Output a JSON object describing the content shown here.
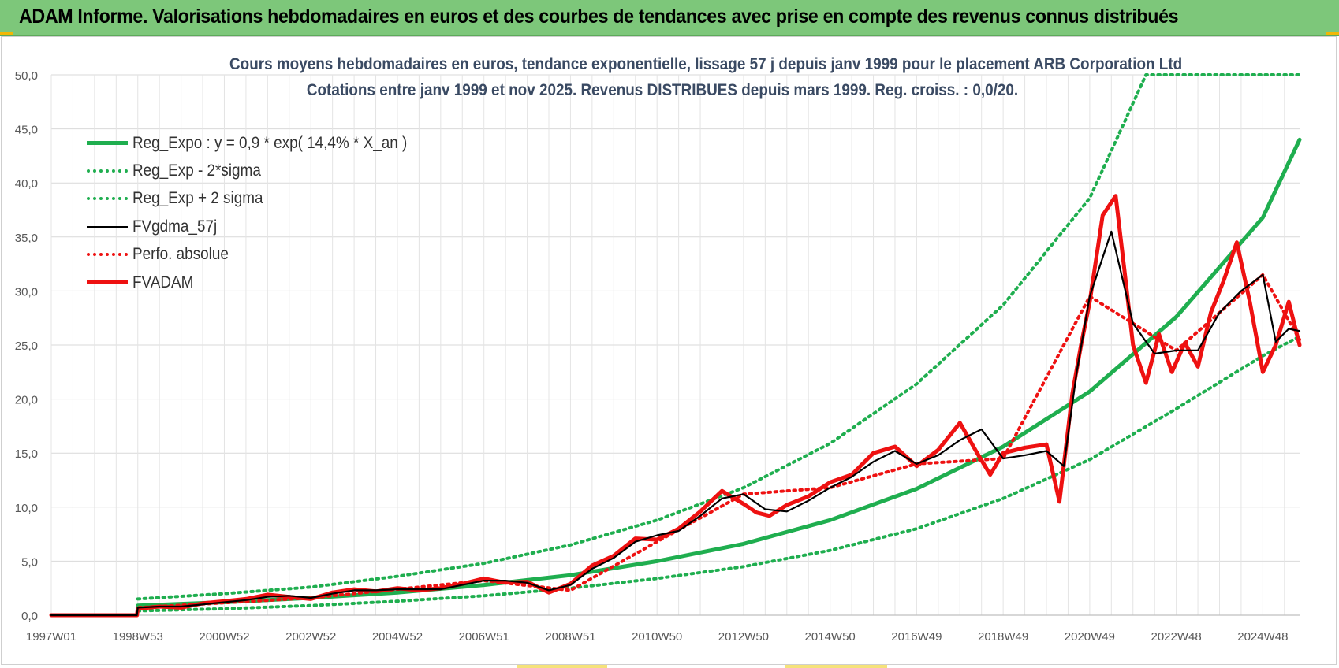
{
  "header": {
    "title": "ADAM Informe. Valorisations hebdomadaires en euros et des courbes de tendances avec prise en compte des revenus connus distribués"
  },
  "colors": {
    "banner": "#7dc77a",
    "reg_green": "#1fae4f",
    "fvadam_red": "#ee1111",
    "fvgdma_black": "#000000",
    "title_blue": "#3a4a63"
  },
  "chart_data": {
    "type": "line",
    "title_line1": "Cours moyens hebdomadaires en euros, tendance exponentielle, lissage 57 j depuis janv 1999 pour le placement ARB Corporation Ltd",
    "title_line2": "Cotations entre janv 1999 et nov 2025. Revenus DISTRIBUES depuis mars 1999. Reg. croiss. : 0,0/20.",
    "xlabel": "",
    "ylabel": "",
    "x_range": [
      1997.0,
      2025.85
    ],
    "ylim": [
      0,
      50
    ],
    "y_ticks": [
      "0,0",
      "5,0",
      "10,0",
      "15,0",
      "20,0",
      "25,0",
      "30,0",
      "35,0",
      "40,0",
      "45,0",
      "50,0"
    ],
    "x_ticks": [
      {
        "label": "1997W01",
        "year": 1997.0
      },
      {
        "label": "1998W53",
        "year": 1999.0
      },
      {
        "label": "2000W52",
        "year": 2001.0
      },
      {
        "label": "2002W52",
        "year": 2003.0
      },
      {
        "label": "2004W52",
        "year": 2005.0
      },
      {
        "label": "2006W51",
        "year": 2007.0
      },
      {
        "label": "2008W51",
        "year": 2009.0
      },
      {
        "label": "2010W50",
        "year": 2011.0
      },
      {
        "label": "2012W50",
        "year": 2013.0
      },
      {
        "label": "2014W50",
        "year": 2015.0
      },
      {
        "label": "2016W49",
        "year": 2017.0
      },
      {
        "label": "2018W49",
        "year": 2019.0
      },
      {
        "label": "2020W49",
        "year": 2021.0
      },
      {
        "label": "2022W48",
        "year": 2023.0
      },
      {
        "label": "2024W48",
        "year": 2025.0
      }
    ],
    "grid": true,
    "legend_position": "top-left",
    "series": [
      {
        "name": "Reg_Expo : y = 0,9 * exp( 14,4% *  X_an )",
        "style": "solid-thick",
        "color": "#1fae4f",
        "x": [
          1999.0,
          2001.0,
          2003.0,
          2005.0,
          2007.0,
          2009.0,
          2011.0,
          2013.0,
          2015.0,
          2017.0,
          2019.0,
          2021.0,
          2023.0,
          2025.0,
          2025.85
        ],
        "values": [
          0.9,
          1.2,
          1.6,
          2.1,
          2.8,
          3.7,
          5.0,
          6.6,
          8.8,
          11.7,
          15.6,
          20.7,
          27.6,
          36.8,
          44.0
        ]
      },
      {
        "name": "Reg_Exp - 2*sigma",
        "style": "dotted",
        "color": "#1fae4f",
        "x": [
          1999.0,
          2001.0,
          2003.0,
          2005.0,
          2007.0,
          2009.0,
          2011.0,
          2013.0,
          2015.0,
          2017.0,
          2019.0,
          2021.0,
          2023.0,
          2025.0,
          2025.85
        ],
        "values": [
          0.4,
          0.6,
          0.9,
          1.3,
          1.8,
          2.5,
          3.4,
          4.5,
          6.0,
          8.0,
          10.8,
          14.4,
          19.1,
          24.0,
          25.8
        ]
      },
      {
        "name": "Reg_Exp + 2 sigma",
        "style": "dotted",
        "color": "#1fae4f",
        "x": [
          1999.0,
          2001.0,
          2003.0,
          2005.0,
          2007.0,
          2009.0,
          2011.0,
          2013.0,
          2015.0,
          2017.0,
          2019.0,
          2021.0,
          2022.3,
          2025.85
        ],
        "values": [
          1.5,
          2.0,
          2.6,
          3.6,
          4.8,
          6.5,
          8.8,
          11.8,
          15.9,
          21.4,
          28.7,
          38.6,
          50.0,
          50.0
        ]
      },
      {
        "name": "FVgdma_57j",
        "style": "solid-thin",
        "color": "#000000",
        "x": [
          1997.0,
          1998.98,
          1999.0,
          1999.5,
          2000.0,
          2000.5,
          2001.0,
          2001.5,
          2002.0,
          2002.5,
          2003.0,
          2003.5,
          2004.0,
          2004.5,
          2005.0,
          2005.5,
          2006.0,
          2006.5,
          2007.0,
          2007.5,
          2008.0,
          2008.5,
          2009.0,
          2009.5,
          2010.0,
          2010.5,
          2011.0,
          2011.5,
          2012.0,
          2012.5,
          2013.0,
          2013.5,
          2014.0,
          2014.5,
          2015.0,
          2015.5,
          2016.0,
          2016.5,
          2017.0,
          2017.5,
          2018.0,
          2018.5,
          2019.0,
          2019.5,
          2020.0,
          2020.4,
          2020.7,
          2021.0,
          2021.5,
          2022.0,
          2022.5,
          2023.0,
          2023.5,
          2024.0,
          2024.5,
          2025.0,
          2025.3,
          2025.6,
          2025.85
        ],
        "values": [
          0.0,
          0.0,
          0.7,
          0.8,
          0.8,
          1.0,
          1.2,
          1.4,
          1.7,
          1.8,
          1.6,
          2.0,
          2.3,
          2.3,
          2.4,
          2.4,
          2.4,
          2.8,
          3.2,
          3.2,
          3.0,
          2.3,
          2.8,
          4.3,
          5.3,
          6.8,
          7.4,
          7.8,
          9.2,
          10.8,
          11.2,
          9.8,
          9.6,
          10.6,
          11.8,
          12.8,
          14.2,
          15.2,
          14.0,
          14.8,
          16.2,
          17.2,
          14.5,
          14.8,
          15.2,
          13.8,
          22.5,
          29.5,
          35.5,
          27.0,
          24.2,
          24.5,
          24.5,
          28.0,
          30.0,
          31.5,
          25.3,
          26.5,
          26.3
        ]
      },
      {
        "name": "Perfo. absolue",
        "style": "dotted",
        "color": "#ee1111",
        "x": [
          1997.0,
          1998.98,
          1999.0,
          2003.0,
          2007.0,
          2009.0,
          2011.0,
          2013.0,
          2015.0,
          2017.0,
          2019.0,
          2021.0,
          2023.0,
          2025.0,
          2025.85
        ],
        "values": [
          0.0,
          0.0,
          0.7,
          1.6,
          3.2,
          2.3,
          6.8,
          11.2,
          11.8,
          14.0,
          14.5,
          29.5,
          24.5,
          31.5,
          25.5
        ]
      },
      {
        "name": "FVADAM",
        "style": "solid-thick",
        "color": "#ee1111",
        "x": [
          1997.0,
          1998.98,
          1999.0,
          1999.5,
          2000.0,
          2000.5,
          2001.0,
          2001.5,
          2002.0,
          2002.5,
          2003.0,
          2003.5,
          2004.0,
          2004.5,
          2005.0,
          2005.5,
          2006.0,
          2006.5,
          2007.0,
          2007.5,
          2008.0,
          2008.5,
          2009.0,
          2009.5,
          2010.0,
          2010.5,
          2011.0,
          2011.5,
          2012.0,
          2012.5,
          2013.0,
          2013.3,
          2013.6,
          2014.0,
          2014.5,
          2015.0,
          2015.5,
          2016.0,
          2016.5,
          2017.0,
          2017.5,
          2018.0,
          2018.4,
          2018.7,
          2019.0,
          2019.5,
          2020.0,
          2020.3,
          2020.6,
          2020.8,
          2021.0,
          2021.3,
          2021.6,
          2021.8,
          2022.0,
          2022.3,
          2022.6,
          2022.9,
          2023.2,
          2023.5,
          2023.8,
          2024.1,
          2024.4,
          2024.7,
          2025.0,
          2025.3,
          2025.6,
          2025.85
        ],
        "values": [
          0.0,
          0.0,
          0.6,
          0.8,
          0.7,
          1.1,
          1.3,
          1.5,
          1.9,
          1.7,
          1.5,
          2.1,
          2.4,
          2.2,
          2.5,
          2.3,
          2.5,
          2.9,
          3.4,
          3.0,
          3.1,
          2.1,
          2.9,
          4.6,
          5.5,
          7.1,
          7.0,
          8.0,
          9.6,
          11.5,
          10.3,
          9.5,
          9.2,
          10.2,
          11.0,
          12.3,
          13.0,
          15.0,
          15.6,
          13.8,
          15.3,
          17.8,
          15.0,
          13.0,
          15.0,
          15.5,
          15.8,
          10.5,
          20.5,
          25.0,
          29.0,
          37.0,
          38.8,
          32.0,
          25.0,
          21.5,
          26.0,
          22.5,
          25.2,
          23.0,
          28.0,
          31.0,
          34.5,
          29.0,
          22.5,
          25.0,
          29.0,
          25.0
        ]
      }
    ]
  }
}
